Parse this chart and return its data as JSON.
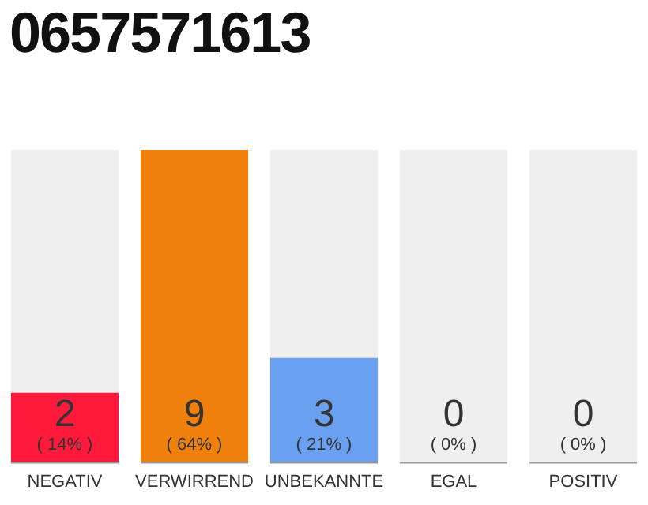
{
  "chart_data": {
    "type": "bar",
    "title": "0657571613",
    "categories": [
      "NEGATIV",
      "VERWIRREND",
      "UNBEKANNTE",
      "EGAL",
      "POSITIV"
    ],
    "values": [
      2,
      9,
      3,
      0,
      0
    ],
    "colors": [
      "#ff1a3c",
      "#f0800c",
      "#6aa0f0",
      "#ff1a3c",
      "#ff1a3c"
    ],
    "ylim": [
      0,
      9
    ],
    "tick_labels": "x",
    "grid": false,
    "legend": false,
    "data_labels": true,
    "bands": [
      {
        "axis": "x",
        "from": "NEGATIV",
        "to": "NEGATIV",
        "color": "#efefef"
      },
      {
        "axis": "x",
        "from": "UNBEKANNTE",
        "to": "UNBEKANNTE",
        "color": "#efefef"
      },
      {
        "axis": "x",
        "from": "EGAL",
        "to": "EGAL",
        "color": "#efefef"
      },
      {
        "axis": "x",
        "from": "POSITIV",
        "to": "POSITIV",
        "color": "#efefef"
      }
    ],
    "annotations": [
      "( 14% )",
      "( 64% )",
      "( 21% )",
      "( 0% )",
      "( 0% )"
    ]
  }
}
